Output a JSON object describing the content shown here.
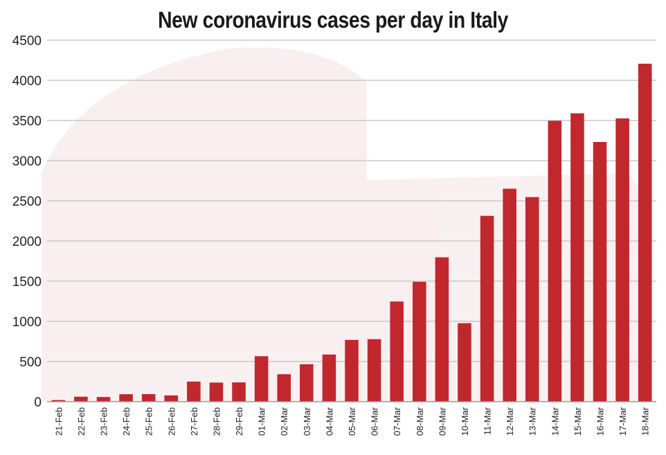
{
  "chart_data": {
    "type": "bar",
    "title": "New coronavirus cases per day in Italy",
    "xlabel": "",
    "ylabel": "",
    "ylim": [
      0,
      4500
    ],
    "yticks": [
      0,
      500,
      1000,
      1500,
      2000,
      2500,
      3000,
      3500,
      4000,
      4500
    ],
    "grid": true,
    "categories": [
      "21-Feb",
      "22-Feb",
      "23-Feb",
      "24-Feb",
      "25-Feb",
      "26-Feb",
      "27-Feb",
      "28-Feb",
      "29-Feb",
      "01-Mar",
      "02-Mar",
      "03-Mar",
      "04-Mar",
      "05-Mar",
      "06-Mar",
      "07-Mar",
      "08-Mar",
      "09-Mar",
      "10-Mar",
      "11-Mar",
      "12-Mar",
      "13-Mar",
      "14-Mar",
      "15-Mar",
      "16-Mar",
      "17-Mar",
      "18-Mar"
    ],
    "values": [
      20,
      62,
      58,
      93,
      94,
      78,
      250,
      238,
      240,
      566,
      342,
      466,
      587,
      769,
      778,
      1247,
      1492,
      1797,
      977,
      2313,
      2651,
      2547,
      3497,
      3590,
      3233,
      3526,
      4207
    ],
    "bar_color": "#c0282d",
    "grid_color": "#c8c8c8",
    "background": "colosseum-watermark"
  }
}
